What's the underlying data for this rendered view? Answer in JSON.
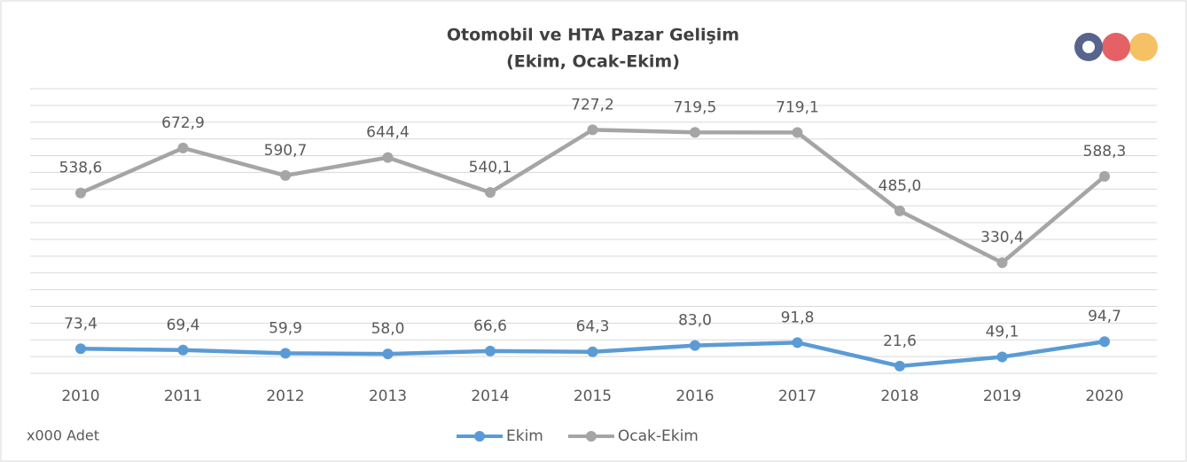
{
  "chart_data": {
    "type": "line",
    "title": "Otomobil ve HTA Pazar Gelişim",
    "subtitle": "(Ekim, Ocak-Ekim)",
    "note": "x000 Adet",
    "categories": [
      "2010",
      "2011",
      "2012",
      "2013",
      "2014",
      "2015",
      "2016",
      "2017",
      "2018",
      "2019",
      "2020"
    ],
    "series": [
      {
        "name": "Ekim",
        "color": "#5b9bd5",
        "values": [
          73.4,
          69.4,
          59.9,
          58.0,
          66.6,
          64.3,
          83.0,
          91.8,
          21.6,
          49.1,
          94.7
        ],
        "value_labels": [
          "73,4",
          "69,4",
          "59,9",
          "58,0",
          "66,6",
          "64,3",
          "83,0",
          "91,8",
          "21,6",
          "49,1",
          "94,7"
        ]
      },
      {
        "name": "Ocak-Ekim",
        "color": "#a5a5a5",
        "values": [
          538.6,
          672.9,
          590.7,
          644.4,
          540.1,
          727.2,
          719.5,
          719.1,
          485.0,
          330.4,
          588.3
        ],
        "value_labels": [
          "538,6",
          "672,9",
          "590,7",
          "644,4",
          "540,1",
          "727,2",
          "719,5",
          "719,1",
          "485,0",
          "330,4",
          "588,3"
        ]
      }
    ],
    "ylim": [
      0,
      850
    ],
    "yticks": [
      0,
      50,
      100,
      150,
      200,
      250,
      300,
      350,
      400,
      450,
      500,
      550,
      600,
      650,
      700,
      750,
      800,
      850
    ],
    "grid": true,
    "legend": "bottom"
  }
}
